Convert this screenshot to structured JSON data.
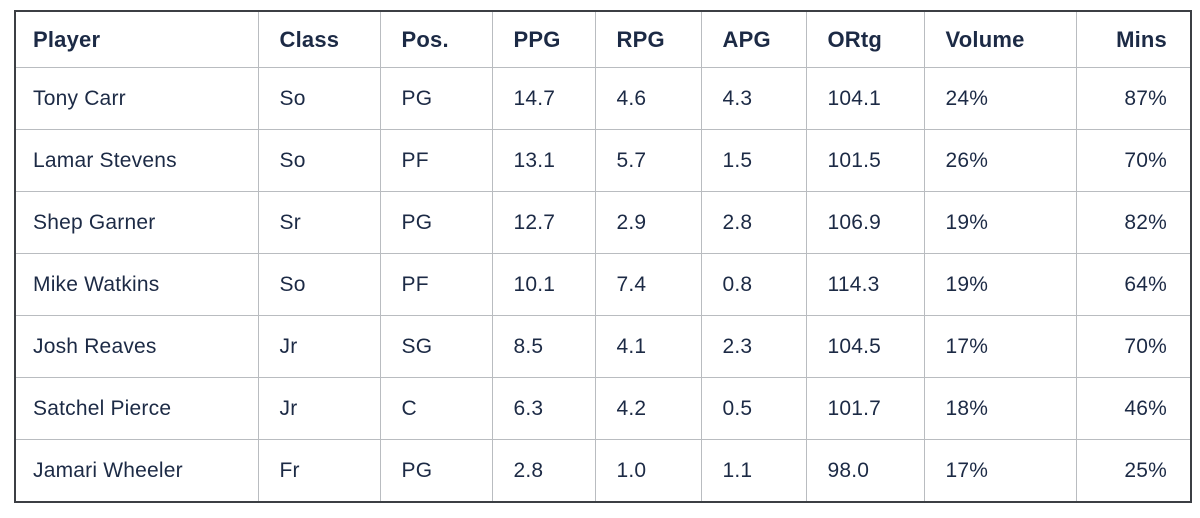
{
  "chart_data": {
    "type": "table",
    "columns": [
      {
        "key": "player",
        "label": "Player"
      },
      {
        "key": "class",
        "label": "Class"
      },
      {
        "key": "pos",
        "label": "Pos."
      },
      {
        "key": "ppg",
        "label": "PPG"
      },
      {
        "key": "rpg",
        "label": "RPG"
      },
      {
        "key": "apg",
        "label": "APG"
      },
      {
        "key": "ortg",
        "label": "ORtg"
      },
      {
        "key": "volume",
        "label": "Volume"
      },
      {
        "key": "mins",
        "label": "Mins"
      }
    ],
    "rows": [
      [
        "Tony Carr",
        "So",
        "PG",
        "14.7",
        "4.6",
        "4.3",
        "104.1",
        "24%",
        "87%"
      ],
      [
        "Lamar Stevens",
        "So",
        "PF",
        "13.1",
        "5.7",
        "1.5",
        "101.5",
        "26%",
        "70%"
      ],
      [
        "Shep Garner",
        "Sr",
        "PG",
        "12.7",
        "2.9",
        "2.8",
        "106.9",
        "19%",
        "82%"
      ],
      [
        "Mike Watkins",
        "So",
        "PF",
        "10.1",
        "7.4",
        "0.8",
        "114.3",
        "19%",
        "64%"
      ],
      [
        "Josh Reaves",
        "Jr",
        "SG",
        "8.5",
        "4.1",
        "2.3",
        "104.5",
        "17%",
        "70%"
      ],
      [
        "Satchel Pierce",
        "Jr",
        "C",
        "6.3",
        "4.2",
        "0.5",
        "101.7",
        "18%",
        "46%"
      ],
      [
        "Jamari Wheeler",
        "Fr",
        "PG",
        "2.8",
        "1.0",
        "1.1",
        "98.0",
        "17%",
        "25%"
      ]
    ],
    "layout": {
      "grid": true,
      "header_row": true,
      "right_aligned_columns": [
        "mins"
      ]
    }
  },
  "colors": {
    "text": "#1c2a45",
    "grid_line": "#b9bcc0",
    "outer_border": "#3c3f44",
    "background": "#ffffff"
  }
}
